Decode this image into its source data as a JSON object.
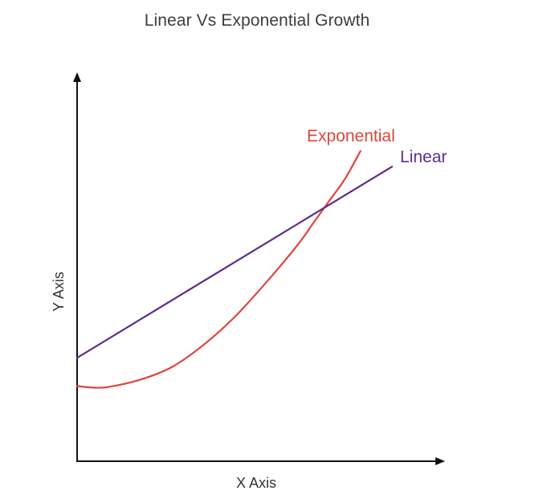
{
  "chart_data": {
    "type": "line",
    "title": "Linear Vs Exponential Growth",
    "xlabel": "X Axis",
    "ylabel": "Y Axis",
    "grid": false,
    "ticks": false,
    "xlim": [
      0,
      10
    ],
    "ylim": [
      0,
      10
    ],
    "series": [
      {
        "name": "Exponential",
        "color": "#e0443b",
        "x": [
          0,
          0.5,
          1,
          2,
          3,
          4,
          5,
          6,
          7,
          7.5,
          8,
          8.5,
          9
        ],
        "y": [
          2.4,
          2.35,
          2.37,
          2.6,
          3.0,
          3.7,
          4.6,
          5.7,
          6.9,
          7.6,
          8.3,
          9.0,
          9.9
        ]
      },
      {
        "name": "Linear",
        "color": "#5b2c8e",
        "x": [
          0,
          10
        ],
        "y": [
          3.3,
          9.4
        ]
      }
    ]
  }
}
